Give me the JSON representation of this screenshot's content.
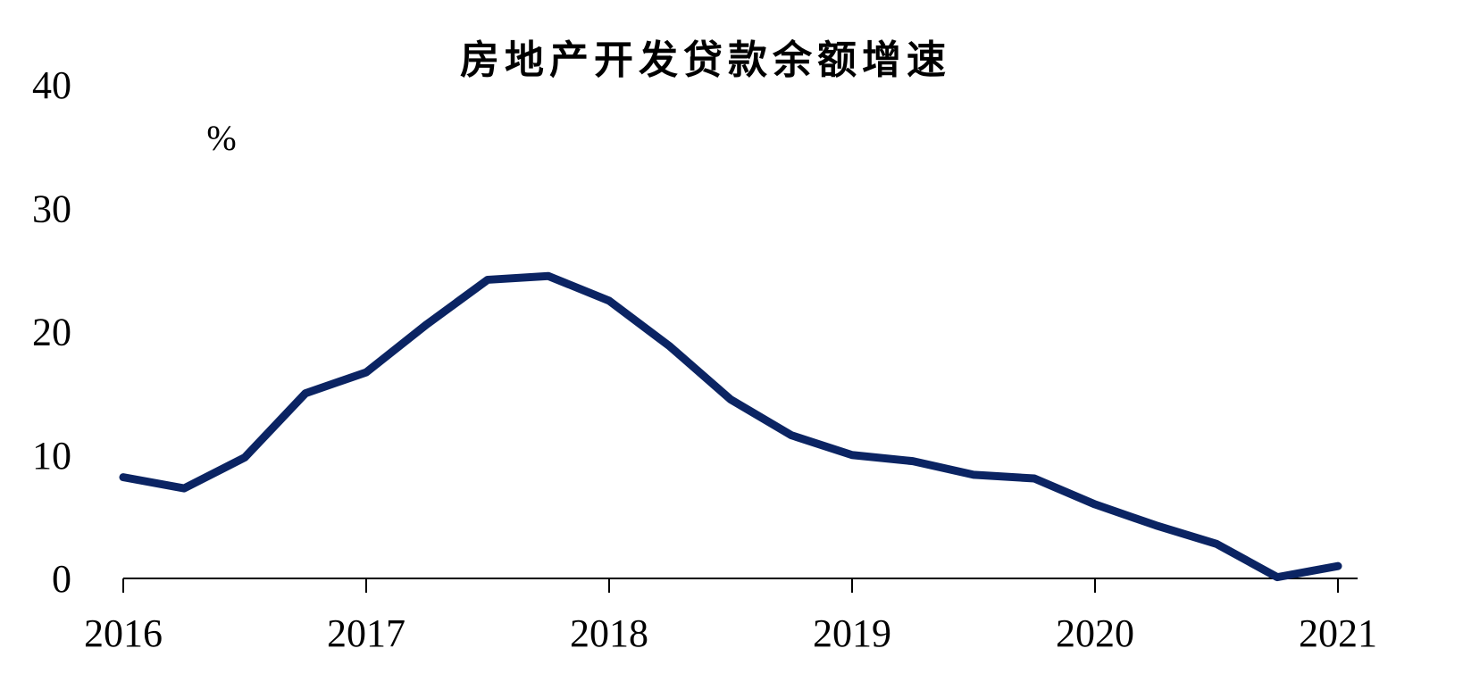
{
  "chart_data": {
    "type": "line",
    "title": "房地产开发贷款余额增速",
    "unit_label": "%",
    "xlabel": "",
    "ylabel": "",
    "ylim": [
      0,
      40
    ],
    "yticks": [
      "0",
      "10",
      "20",
      "30",
      "40"
    ],
    "xticks": [
      "2016",
      "2017",
      "2018",
      "2019",
      "2020",
      "2021"
    ],
    "grid": false,
    "legend": "none",
    "line_color": "#0b2463",
    "series": [
      {
        "x": [
          2016.0,
          2016.25,
          2016.5,
          2016.75,
          2017.0,
          2017.25,
          2017.5,
          2017.75,
          2018.0,
          2018.25,
          2018.5,
          2018.75,
          2019.0,
          2019.25,
          2019.5,
          2019.75,
          2020.0,
          2020.25,
          2020.5,
          2020.75,
          2021.0
        ],
        "values": [
          8.2,
          7.3,
          9.8,
          15.0,
          16.7,
          20.6,
          24.2,
          24.5,
          22.5,
          18.8,
          14.5,
          11.6,
          10.0,
          9.5,
          8.4,
          8.1,
          6.0,
          4.3,
          2.8,
          0.1,
          1.0
        ]
      }
    ]
  }
}
